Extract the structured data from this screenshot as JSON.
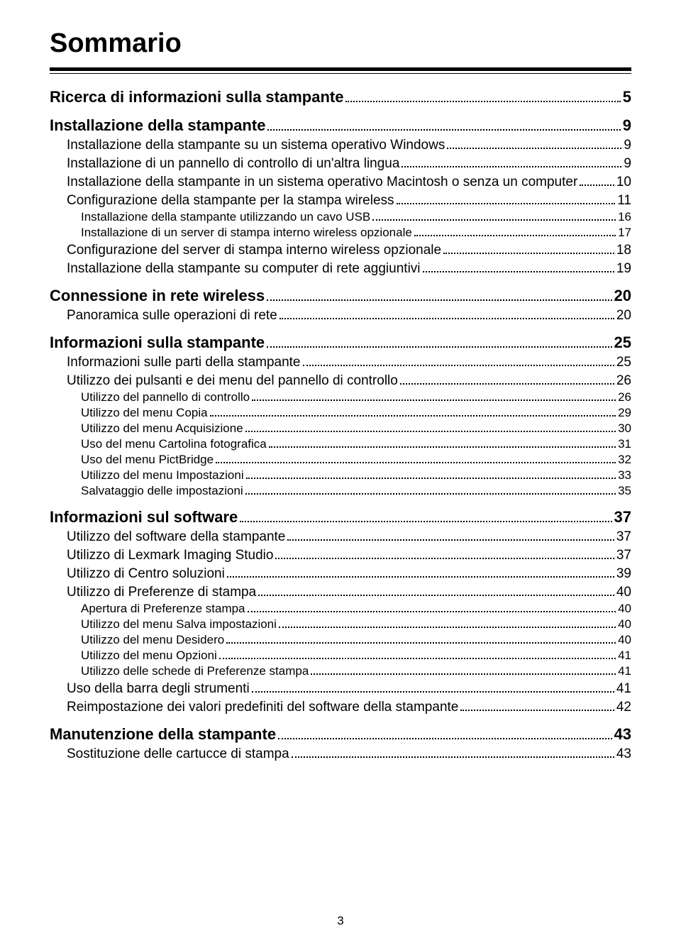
{
  "title": "Sommario",
  "page_number": "3",
  "toc": [
    {
      "level": 1,
      "text": "Ricerca di informazioni sulla stampante",
      "page": "5",
      "gap": "none"
    },
    {
      "level": 1,
      "text": "Installazione della stampante",
      "page": "9",
      "gap": "section"
    },
    {
      "level": 2,
      "text": "Installazione della stampante su un sistema operativo Windows",
      "page": "9",
      "gap": "sub"
    },
    {
      "level": 2,
      "text": "Installazione di un pannello di controllo di un'altra lingua",
      "page": "9",
      "gap": "sub"
    },
    {
      "level": 2,
      "text": "Installazione della stampante in un sistema operativo Macintosh o senza un computer",
      "page": "10",
      "gap": "sub"
    },
    {
      "level": 2,
      "text": "Configurazione della stampante per la stampa wireless",
      "page": "11",
      "gap": "sub"
    },
    {
      "level": 3,
      "text": "Installazione della stampante utilizzando un cavo USB",
      "page": "16",
      "gap": "none"
    },
    {
      "level": 3,
      "text": "Installazione di un server di stampa interno wireless opzionale",
      "page": "17",
      "gap": "none"
    },
    {
      "level": 2,
      "text": "Configurazione del server di stampa interno wireless opzionale",
      "page": "18",
      "gap": "sub"
    },
    {
      "level": 2,
      "text": "Installazione della stampante su computer di rete aggiuntivi",
      "page": "19",
      "gap": "sub"
    },
    {
      "level": 1,
      "text": "Connessione in rete wireless",
      "page": "20",
      "gap": "section"
    },
    {
      "level": 2,
      "text": "Panoramica sulle operazioni di rete",
      "page": "20",
      "gap": "sub"
    },
    {
      "level": 1,
      "text": "Informazioni sulla stampante",
      "page": "25",
      "gap": "section"
    },
    {
      "level": 2,
      "text": "Informazioni sulle parti della stampante",
      "page": "25",
      "gap": "sub"
    },
    {
      "level": 2,
      "text": "Utilizzo dei pulsanti e dei menu del pannello di controllo",
      "page": "26",
      "gap": "sub"
    },
    {
      "level": 3,
      "text": "Utilizzo del pannello di controllo",
      "page": "26",
      "gap": "none"
    },
    {
      "level": 3,
      "text": "Utilizzo del menu Copia",
      "page": "29",
      "gap": "none"
    },
    {
      "level": 3,
      "text": "Utilizzo del menu Acquisizione",
      "page": "30",
      "gap": "none"
    },
    {
      "level": 3,
      "text": "Uso del menu Cartolina fotografica",
      "page": "31",
      "gap": "none"
    },
    {
      "level": 3,
      "text": "Uso del menu PictBridge",
      "page": "32",
      "gap": "none"
    },
    {
      "level": 3,
      "text": "Utilizzo del menu Impostazioni",
      "page": "33",
      "gap": "none"
    },
    {
      "level": 3,
      "text": "Salvataggio delle impostazioni",
      "page": "35",
      "gap": "none"
    },
    {
      "level": 1,
      "text": "Informazioni sul software",
      "page": "37",
      "gap": "section"
    },
    {
      "level": 2,
      "text": "Utilizzo del software della stampante",
      "page": "37",
      "gap": "sub"
    },
    {
      "level": 2,
      "text": "Utilizzo di Lexmark Imaging Studio",
      "page": "37",
      "gap": "sub"
    },
    {
      "level": 2,
      "text": "Utilizzo di Centro soluzioni",
      "page": "39",
      "gap": "sub"
    },
    {
      "level": 2,
      "text": "Utilizzo di Preferenze di stampa",
      "page": "40",
      "gap": "sub"
    },
    {
      "level": 3,
      "text": "Apertura di Preferenze stampa",
      "page": "40",
      "gap": "none"
    },
    {
      "level": 3,
      "text": "Utilizzo del menu Salva impostazioni",
      "page": "40",
      "gap": "none"
    },
    {
      "level": 3,
      "text": "Utilizzo del menu Desidero",
      "page": "40",
      "gap": "none"
    },
    {
      "level": 3,
      "text": "Utilizzo del menu Opzioni",
      "page": "41",
      "gap": "none"
    },
    {
      "level": 3,
      "text": "Utilizzo delle schede di Preferenze stampa",
      "page": "41",
      "gap": "none"
    },
    {
      "level": 2,
      "text": "Uso della barra degli strumenti",
      "page": "41",
      "gap": "sub"
    },
    {
      "level": 2,
      "text": "Reimpostazione dei valori predefiniti del software della stampante",
      "page": "42",
      "gap": "sub"
    },
    {
      "level": 1,
      "text": "Manutenzione della stampante",
      "page": "43",
      "gap": "section"
    },
    {
      "level": 2,
      "text": "Sostituzione delle cartucce di stampa",
      "page": "43",
      "gap": "sub"
    }
  ]
}
